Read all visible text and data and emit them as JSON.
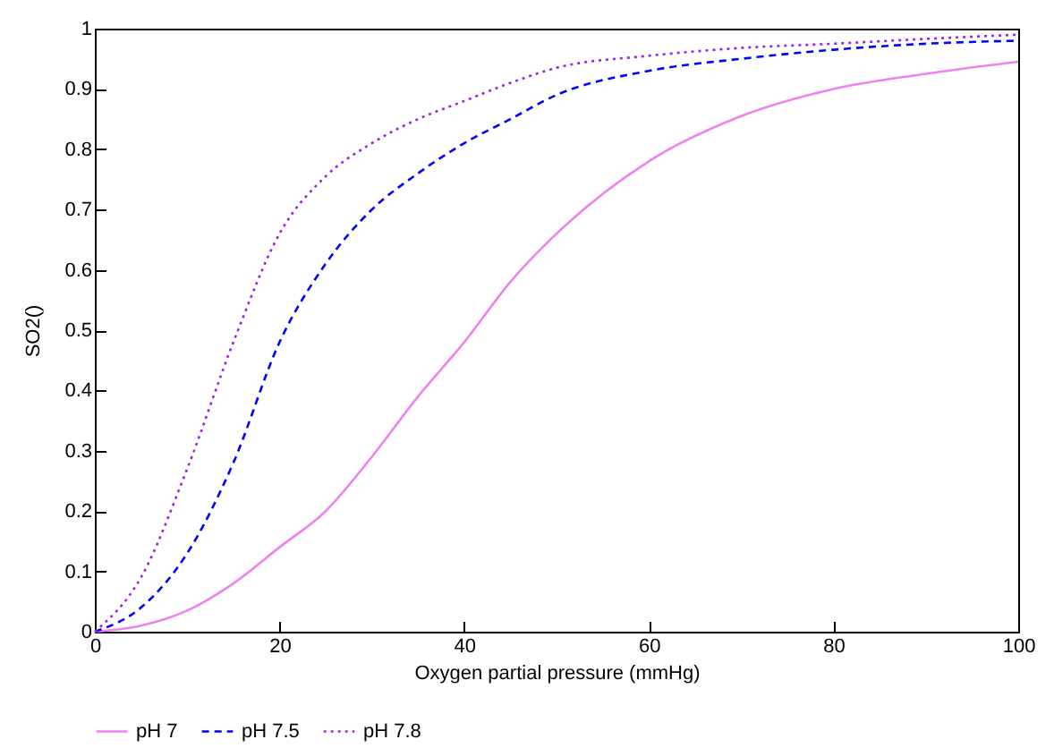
{
  "chart_data": {
    "type": "line",
    "xlabel": "Oxygen partial pressure (mmHg)",
    "ylabel": "SO2()",
    "xlim": [
      0,
      100
    ],
    "ylim": [
      0,
      1
    ],
    "xticks": [
      0,
      20,
      40,
      60,
      80,
      100
    ],
    "yticks": [
      0,
      0.1,
      0.2,
      0.3,
      0.4,
      0.5,
      0.6,
      0.7,
      0.8,
      0.9,
      1
    ],
    "grid": false,
    "legend": "bottom",
    "marker": "none",
    "x": [
      0,
      5,
      10,
      15,
      20,
      25,
      30,
      35,
      40,
      45,
      50,
      60,
      70,
      80,
      90,
      100
    ],
    "series": [
      {
        "name": "pH 7",
        "color": "#ee82ee",
        "line_style": "solid",
        "values": [
          0,
          0.01,
          0.035,
          0.08,
          0.14,
          0.2,
          0.29,
          0.39,
          0.48,
          0.58,
          0.66,
          0.78,
          0.855,
          0.9,
          0.925,
          0.945
        ]
      },
      {
        "name": "pH 7.5",
        "color": "#0000ff",
        "line_style": "dashed",
        "values": [
          0,
          0.04,
          0.13,
          0.28,
          0.48,
          0.61,
          0.7,
          0.76,
          0.81,
          0.85,
          0.89,
          0.93,
          0.95,
          0.965,
          0.975,
          0.98
        ]
      },
      {
        "name": "pH 7.8",
        "color": "#a020f0",
        "line_style": "dotted",
        "values": [
          0,
          0.09,
          0.27,
          0.48,
          0.66,
          0.755,
          0.81,
          0.85,
          0.88,
          0.91,
          0.935,
          0.955,
          0.968,
          0.975,
          0.983,
          0.99
        ]
      }
    ]
  }
}
